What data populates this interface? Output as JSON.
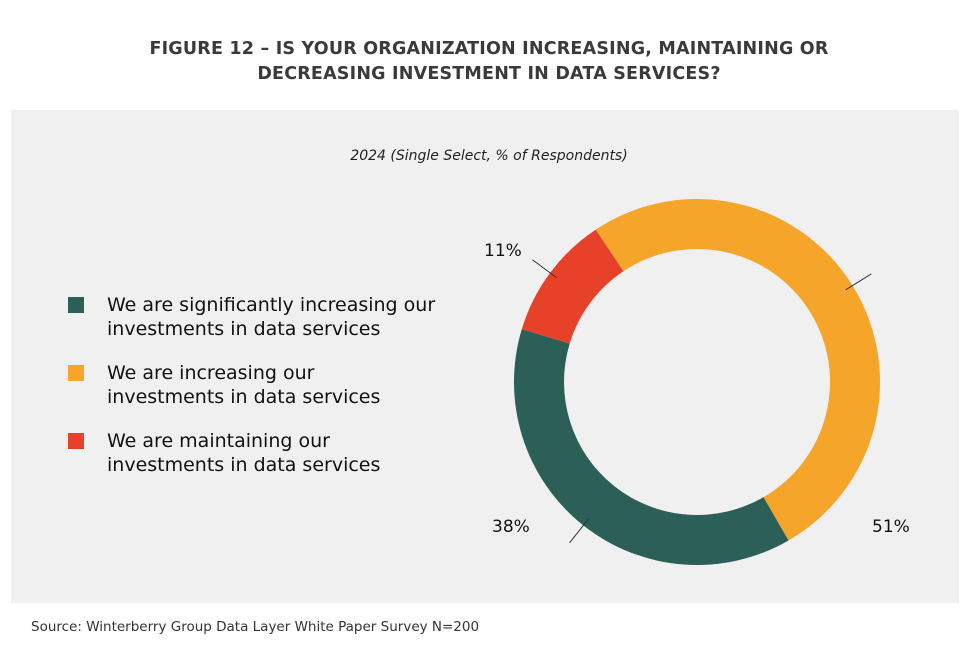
{
  "title_line1": "FIGURE 12 – IS YOUR ORGANIZATION INCREASING, MAINTAINING OR",
  "title_line2": "DECREASING INVESTMENT IN DATA SERVICES?",
  "source": "Source: Winterberry Group Data Layer White Paper Survey N=200",
  "chart_data": {
    "type": "pie",
    "variant": "donut",
    "subtitle": "2024 (Single Select, % of Respondents)",
    "legend_position": "left",
    "slices": [
      {
        "name": "We are increasing our investments in data services",
        "value": 51,
        "label": "51%",
        "color": "#f5a529"
      },
      {
        "name": "We are significantly increasing our investments in data services",
        "value": 38,
        "label": "38%",
        "color": "#2b5f57"
      },
      {
        "name": "We are maintaining our investments in data services",
        "value": 11,
        "label": "11%",
        "color": "#e8412a"
      }
    ],
    "legend": [
      {
        "label": "We are significantly increasing our investments in data services",
        "color": "#2b5f57"
      },
      {
        "label": "We are increasing our investments in data services",
        "color": "#f5a529"
      },
      {
        "label": "We are maintaining our investments in data services",
        "color": "#e8412a"
      }
    ]
  }
}
